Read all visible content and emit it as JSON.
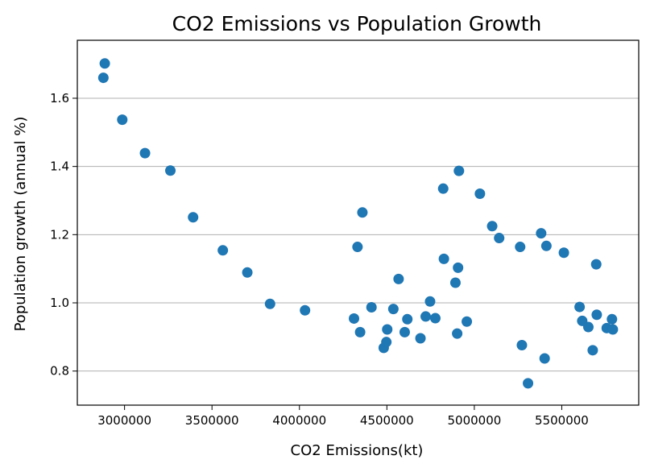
{
  "chart_data": {
    "type": "scatter",
    "title": "CO2 Emissions vs Population Growth",
    "xlabel": "CO2 Emissions(kt)",
    "ylabel": "Population growth (annual %)",
    "xlim": [
      2730000,
      5940000
    ],
    "ylim": [
      0.7,
      1.77
    ],
    "xticks": [
      3000000,
      3500000,
      4000000,
      4500000,
      5000000,
      5500000
    ],
    "xtick_labels": [
      "3000000",
      "3500000",
      "4000000",
      "4500000",
      "5000000",
      "5500000"
    ],
    "yticks": [
      0.8,
      1.0,
      1.2,
      1.4,
      1.6
    ],
    "ytick_labels": [
      "0.8",
      "1.0",
      "1.2",
      "1.4",
      "1.6"
    ],
    "grid": "y-major",
    "color": "#1f77b4",
    "x": [
      2887000,
      2879000,
      2987000,
      3117000,
      3262000,
      3392000,
      3562000,
      3702000,
      3832000,
      4032000,
      4360000,
      4332000,
      4312000,
      4347000,
      4412000,
      4502000,
      4482000,
      4497000,
      4537000,
      4567000,
      4602000,
      4617000,
      4692000,
      4722000,
      4747000,
      4777000,
      4822000,
      4826000,
      4912000,
      4907000,
      4892000,
      4902000,
      4957000,
      5032000,
      5102000,
      5142000,
      5262000,
      5272000,
      5307000,
      5382000,
      5402000,
      5412000,
      5512000,
      5602000,
      5617000,
      5652000,
      5677000,
      5697000,
      5700000,
      5757000,
      5787000,
      5792000
    ],
    "y": [
      1.702,
      1.66,
      1.537,
      1.439,
      1.388,
      1.251,
      1.154,
      1.089,
      0.997,
      0.978,
      1.265,
      1.164,
      0.954,
      0.914,
      0.987,
      0.922,
      0.868,
      0.885,
      0.982,
      1.07,
      0.914,
      0.952,
      0.896,
      0.96,
      1.004,
      0.955,
      1.335,
      1.129,
      1.387,
      1.103,
      1.059,
      0.91,
      0.945,
      1.32,
      1.225,
      1.19,
      1.164,
      0.876,
      0.764,
      1.204,
      0.837,
      1.167,
      1.147,
      0.988,
      0.947,
      0.929,
      0.861,
      1.113,
      0.965,
      0.926,
      0.952,
      0.922
    ]
  }
}
